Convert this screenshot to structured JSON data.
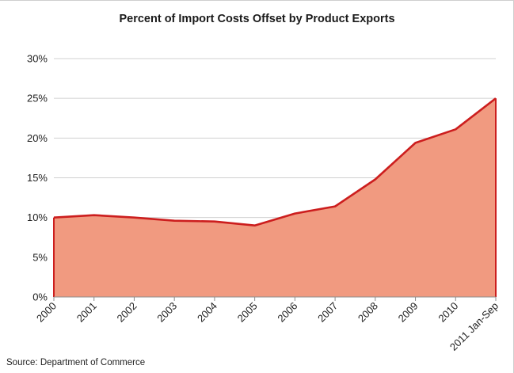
{
  "chart_data": {
    "type": "area",
    "title": "Percent of Import Costs Offset by Product Exports",
    "source": "Source:  Department of Commerce",
    "categories": [
      "2000",
      "2001",
      "2002",
      "2003",
      "2004",
      "2005",
      "2006",
      "2007",
      "2008",
      "2009",
      "2010",
      "2011 Jan-Sep"
    ],
    "series": [
      {
        "values": [
          10.0,
          10.3,
          10.0,
          9.6,
          9.5,
          9.0,
          10.5,
          11.4,
          14.8,
          19.4,
          21.1,
          25.0
        ]
      }
    ],
    "y_ticks": [
      "0%",
      "5%",
      "10%",
      "15%",
      "20%",
      "25%",
      "30%"
    ],
    "ylim": [
      0,
      30
    ],
    "grid": true,
    "legend": "none",
    "colors": {
      "fill": "#f19a80",
      "line": "#cc1e1e",
      "grid": "#d0d0d0",
      "axis": "#8c8c8c"
    }
  }
}
